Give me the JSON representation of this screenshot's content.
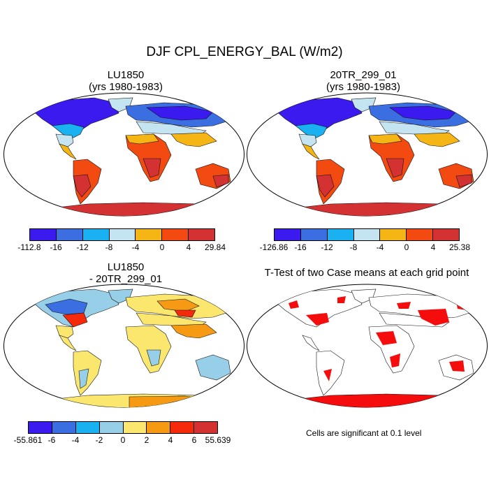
{
  "figure": {
    "main_title": "DJF CPL_ENERGY_BAL (W/m2)",
    "note": "Cells are significant at 0.1 level"
  },
  "panels": [
    {
      "id": "lu1850",
      "title_line1": "LU1850",
      "title_line2": "(yrs 1980-1983)"
    },
    {
      "id": "20tr",
      "title_line1": "20TR_299_01",
      "title_line2": "(yrs 1980-1983)"
    },
    {
      "id": "diff",
      "title_line1": "LU1850",
      "title_line2": "- 20TR_299_01"
    },
    {
      "id": "ttest",
      "title_line1": "T-Test of two Case means at each grid point"
    }
  ],
  "colorbars": [
    {
      "id": "cbar1",
      "colors": [
        "#3b1af0",
        "#3b6ee0",
        "#1ab1f0",
        "#c4e4f2",
        "#f5b514",
        "#f24a10",
        "#d43232"
      ],
      "labels": [
        "-112.8",
        "-16",
        "-12",
        "-8",
        "-4",
        "0",
        "4",
        "29.84"
      ]
    },
    {
      "id": "cbar2",
      "colors": [
        "#3b1af0",
        "#3b6ee0",
        "#1ab1f0",
        "#c4e4f2",
        "#f5b514",
        "#f24a10",
        "#d43232"
      ],
      "labels": [
        "-126.86",
        "-16",
        "-12",
        "-8",
        "-4",
        "0",
        "4",
        "25.38"
      ]
    },
    {
      "id": "cbar3",
      "colors": [
        "#3b1af0",
        "#3b6ee0",
        "#1ab1f0",
        "#98cfe8",
        "#fbe76e",
        "#f59a12",
        "#f52a0a",
        "#d43232"
      ],
      "labels": [
        "-55.861",
        "-6",
        "-4",
        "-2",
        "0",
        "2",
        "4",
        "6",
        "55.639"
      ]
    }
  ]
}
